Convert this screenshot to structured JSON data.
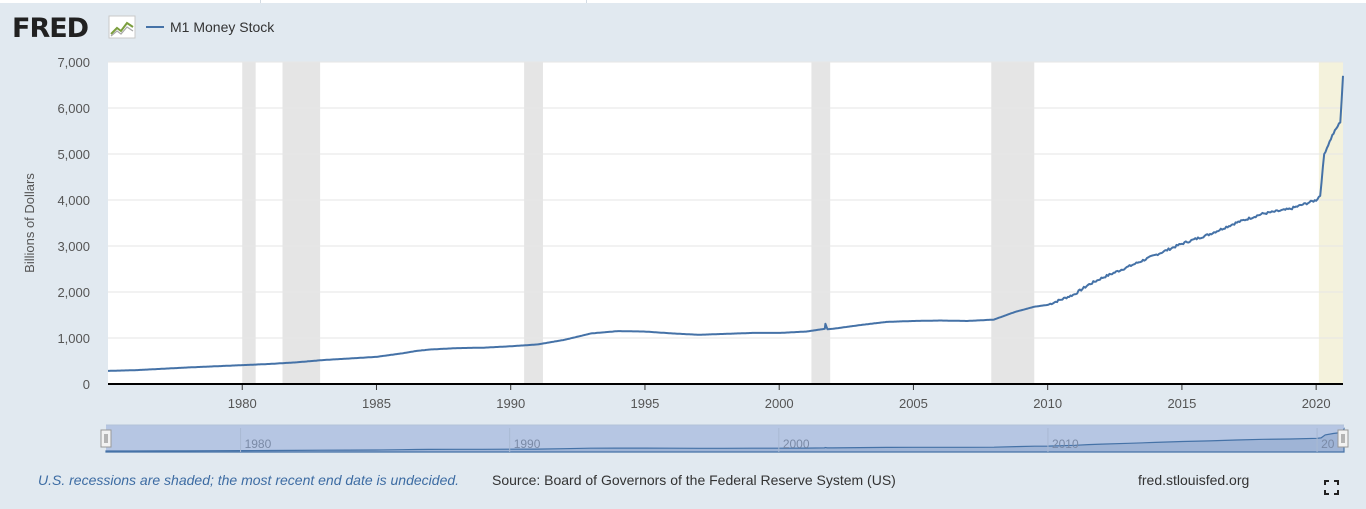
{
  "brand": {
    "logo_text": "FRED"
  },
  "legend": {
    "series_label": "M1 Money Stock"
  },
  "footer": {
    "recession_note": "U.S. recessions are shaded; the most recent end date is undecided.",
    "source": "Source: Board of Governors of the Federal Reserve System (US)",
    "site": "fred.stlouisfed.org"
  },
  "colors": {
    "line": "#4572a7",
    "recession": "#e5e5e5",
    "undecided_recession": "#f4f2dc",
    "navigator_fill": "#b6c6e3",
    "page_bg": "#e1e9f0"
  },
  "icons": {
    "logo_mark": "chart-graph-icon",
    "fullscreen": "fullscreen-icon"
  },
  "chart_data": {
    "type": "line",
    "title": "",
    "xlabel": "",
    "ylabel": "Billions of Dollars",
    "xlim": [
      1975.0,
      2021.0
    ],
    "ylim": [
      0,
      7000
    ],
    "yticks": [
      0,
      1000,
      2000,
      3000,
      4000,
      5000,
      6000,
      7000
    ],
    "ytick_labels": [
      "0",
      "1,000",
      "2,000",
      "3,000",
      "4,000",
      "5,000",
      "6,000",
      "7,000"
    ],
    "xticks": [
      1980,
      1985,
      1990,
      1995,
      2000,
      2005,
      2010,
      2015,
      2020
    ],
    "xtick_labels": [
      "1980",
      "1985",
      "1990",
      "1995",
      "2000",
      "2005",
      "2010",
      "2015",
      "2020"
    ],
    "grid": true,
    "recessions": [
      {
        "start": 1980.0,
        "end": 1980.5
      },
      {
        "start": 1981.5,
        "end": 1982.9
      },
      {
        "start": 1990.5,
        "end": 1991.2
      },
      {
        "start": 2001.2,
        "end": 2001.9
      },
      {
        "start": 2007.9,
        "end": 2009.5
      },
      {
        "start": 2020.1,
        "end": 2021.0,
        "undecided": true
      }
    ],
    "series": [
      {
        "name": "M1 Money Stock",
        "x": [
          1975.0,
          1976.0,
          1977.0,
          1978.0,
          1979.0,
          1980.0,
          1981.0,
          1982.0,
          1983.0,
          1984.0,
          1985.0,
          1986.0,
          1986.5,
          1987.0,
          1988.0,
          1989.0,
          1990.0,
          1991.0,
          1992.0,
          1993.0,
          1994.0,
          1995.0,
          1996.0,
          1997.0,
          1998.0,
          1999.0,
          2000.0,
          2001.0,
          2001.7,
          2001.72,
          2001.8,
          2002.0,
          2003.0,
          2004.0,
          2005.0,
          2006.0,
          2007.0,
          2008.0,
          2008.8,
          2009.0,
          2009.5,
          2010.0,
          2011.0,
          2011.5,
          2012.0,
          2013.0,
          2014.0,
          2015.0,
          2016.0,
          2017.0,
          2018.0,
          2019.0,
          2020.0,
          2020.15,
          2020.3,
          2020.6,
          2020.9,
          2021.0
        ],
        "y": [
          285,
          300,
          330,
          360,
          385,
          410,
          435,
          470,
          520,
          555,
          590,
          670,
          720,
          750,
          780,
          790,
          820,
          860,
          960,
          1100,
          1150,
          1140,
          1100,
          1070,
          1090,
          1110,
          1110,
          1140,
          1200,
          1310,
          1190,
          1200,
          1280,
          1350,
          1370,
          1380,
          1370,
          1400,
          1570,
          1600,
          1680,
          1720,
          1950,
          2150,
          2300,
          2550,
          2800,
          3050,
          3250,
          3500,
          3700,
          3800,
          4000,
          4100,
          5000,
          5400,
          5700,
          6700
        ]
      }
    ],
    "navigator": {
      "tick_labels": [
        "1980",
        "1990",
        "2000",
        "2010",
        "20"
      ]
    }
  }
}
